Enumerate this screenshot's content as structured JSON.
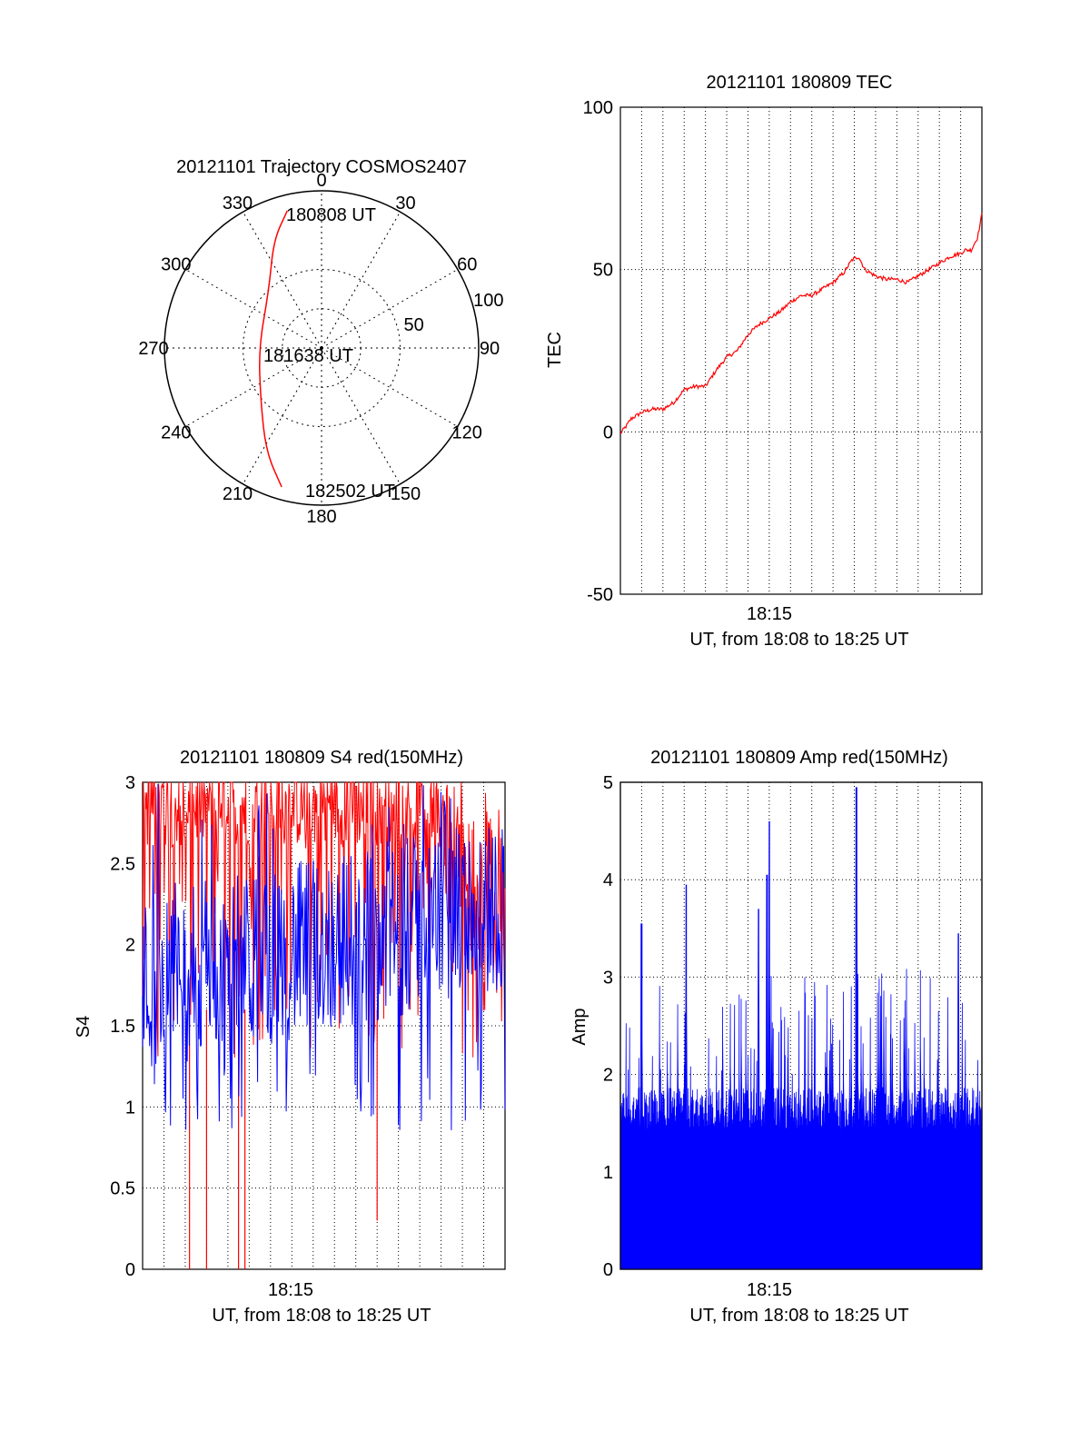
{
  "colors": {
    "red": "#ff0000",
    "blue": "#0000ff",
    "axis": "#000000",
    "grid": "#000000"
  },
  "chart_data": [
    {
      "type": "polar-trajectory",
      "title": "20121101 Trajectory COSMOS2407",
      "angle_ticks": [
        "0",
        "30",
        "60",
        "90",
        "120",
        "150",
        "180",
        "210",
        "240",
        "270",
        "300",
        "330"
      ],
      "radial_tick_labels": [
        "50",
        "100"
      ],
      "radial_ticks": [
        50,
        100
      ],
      "r_max": 100,
      "labels": {
        "start": "180808 UT",
        "mid": "181638 UT",
        "end": "182502 UT"
      },
      "trajectory": [
        {
          "az": 346,
          "r": 90
        },
        {
          "az": 336,
          "r": 75
        },
        {
          "az": 318,
          "r": 50
        },
        {
          "az": 270,
          "r": 40
        },
        {
          "az": 228,
          "r": 52
        },
        {
          "az": 208,
          "r": 75
        },
        {
          "az": 196,
          "r": 92
        }
      ]
    },
    {
      "type": "line",
      "title": "20121101 180809 TEC",
      "ylabel": "TEC",
      "xlabel": "UT, from 18:08 to 18:25 UT",
      "xtick_label": "18:15",
      "ylim": [
        -50,
        100
      ],
      "yticks": [
        "-50",
        "0",
        "50",
        "100"
      ],
      "series": [
        {
          "color": "red",
          "x": [
            0,
            0.3,
            0.5,
            1.0,
            1.5,
            2.0,
            2.5,
            3.0,
            3.5,
            4.0,
            4.5,
            5.0,
            5.5,
            6.0,
            6.5,
            7.0,
            7.5,
            8.0,
            8.5,
            9.0,
            9.5,
            10.0,
            10.5,
            10.9,
            11.2,
            11.5,
            12.0,
            12.5,
            13.0,
            13.5,
            14.0,
            14.5,
            15.0,
            15.5,
            16.0,
            16.2,
            16.5,
            16.8,
            17.0
          ],
          "y": [
            -0.5,
            2,
            4,
            6,
            7,
            7,
            9,
            13,
            14,
            14,
            19,
            23,
            25,
            30,
            33,
            35,
            37,
            40,
            42,
            42,
            44,
            46,
            49,
            53,
            54,
            50,
            48,
            47,
            47,
            46,
            48,
            50,
            52,
            54,
            55,
            56,
            56,
            60,
            67
          ]
        }
      ]
    },
    {
      "type": "line",
      "title": "20121101 180809 S4 red(150MHz)",
      "ylabel": "S4",
      "xlabel": "UT, from 18:08 to 18:25 UT",
      "xtick_label": "18:15",
      "ylim": [
        0,
        3
      ],
      "yticks": [
        "0",
        "0.5",
        "1",
        "1.5",
        "2",
        "2.5",
        "3"
      ],
      "series": [
        {
          "name": "",
          "color": "red",
          "band": [
            2.6,
            3.0
          ],
          "dropouts": [
            2.2,
            3.0,
            4.5,
            4.8,
            11.0
          ]
        },
        {
          "name": "",
          "color": "blue",
          "band": [
            1.2,
            2.3
          ],
          "min": 0.85
        }
      ]
    },
    {
      "type": "area",
      "title": "20121101 180809 Amp red(150MHz)",
      "ylabel": "Amp",
      "xlabel": "UT, from 18:08 to 18:25 UT",
      "xtick_label": "18:15",
      "ylim": [
        0,
        5
      ],
      "yticks": [
        "0",
        "1",
        "2",
        "3",
        "4",
        "5"
      ],
      "series": [
        {
          "color": "blue",
          "base_level": 1.7,
          "peaks": [
            {
              "x": 1.0,
              "y": 3.55
            },
            {
              "x": 3.1,
              "y": 3.95
            },
            {
              "x": 6.5,
              "y": 3.7
            },
            {
              "x": 6.9,
              "y": 4.05
            },
            {
              "x": 7.0,
              "y": 4.6
            },
            {
              "x": 11.1,
              "y": 4.95
            },
            {
              "x": 15.9,
              "y": 3.45
            }
          ]
        }
      ]
    }
  ]
}
